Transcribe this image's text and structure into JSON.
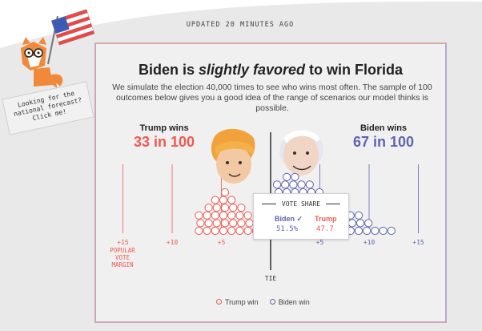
{
  "header": {
    "updated": "UPDATED 20 MINUTES AGO"
  },
  "promo": {
    "line1": "Looking for the",
    "line2": "national forecast?",
    "line3": "Click me!"
  },
  "card": {
    "headline_pre": "Biden is ",
    "headline_em": "slightly favored",
    "headline_post": " to win Florida",
    "subhead": "We simulate the election 40,000 times to see who wins most often. The sample of 100 outcomes below gives you a good idea of the range of scenarios our model thinks is possible."
  },
  "trump": {
    "label": "Trump wins",
    "odds": "33 in 100",
    "color": "#ee5a52"
  },
  "biden": {
    "label": "Biden wins",
    "odds": "67 in 100",
    "color": "#5f64b0"
  },
  "axis": {
    "tie_label": "TIE",
    "margin_label_1": "POPULAR",
    "margin_label_2": "VOTE",
    "margin_label_3": "MARGIN",
    "ticks": [
      {
        "label": "+15",
        "value": -15,
        "side": "trump"
      },
      {
        "label": "+10",
        "value": -10,
        "side": "trump"
      },
      {
        "label": "+5",
        "value": -5,
        "side": "trump"
      },
      {
        "label": "+5",
        "value": 5,
        "side": "biden"
      },
      {
        "label": "+10",
        "value": 10,
        "side": "biden"
      },
      {
        "label": "+15",
        "value": 15,
        "side": "biden"
      }
    ]
  },
  "tooltip": {
    "title": "VOTE SHARE",
    "biden_label": "Biden ✓",
    "trump_label": "Trump",
    "biden_value": "51.5%",
    "trump_value": "47.7"
  },
  "legend": {
    "trump": "Trump win",
    "biden": "Biden win"
  },
  "chart_data": {
    "type": "scatter",
    "xlabel": "POPULAR VOTE MARGIN",
    "xlim": [
      -16,
      16
    ],
    "trump_wins": 33,
    "biden_wins": 67
  }
}
